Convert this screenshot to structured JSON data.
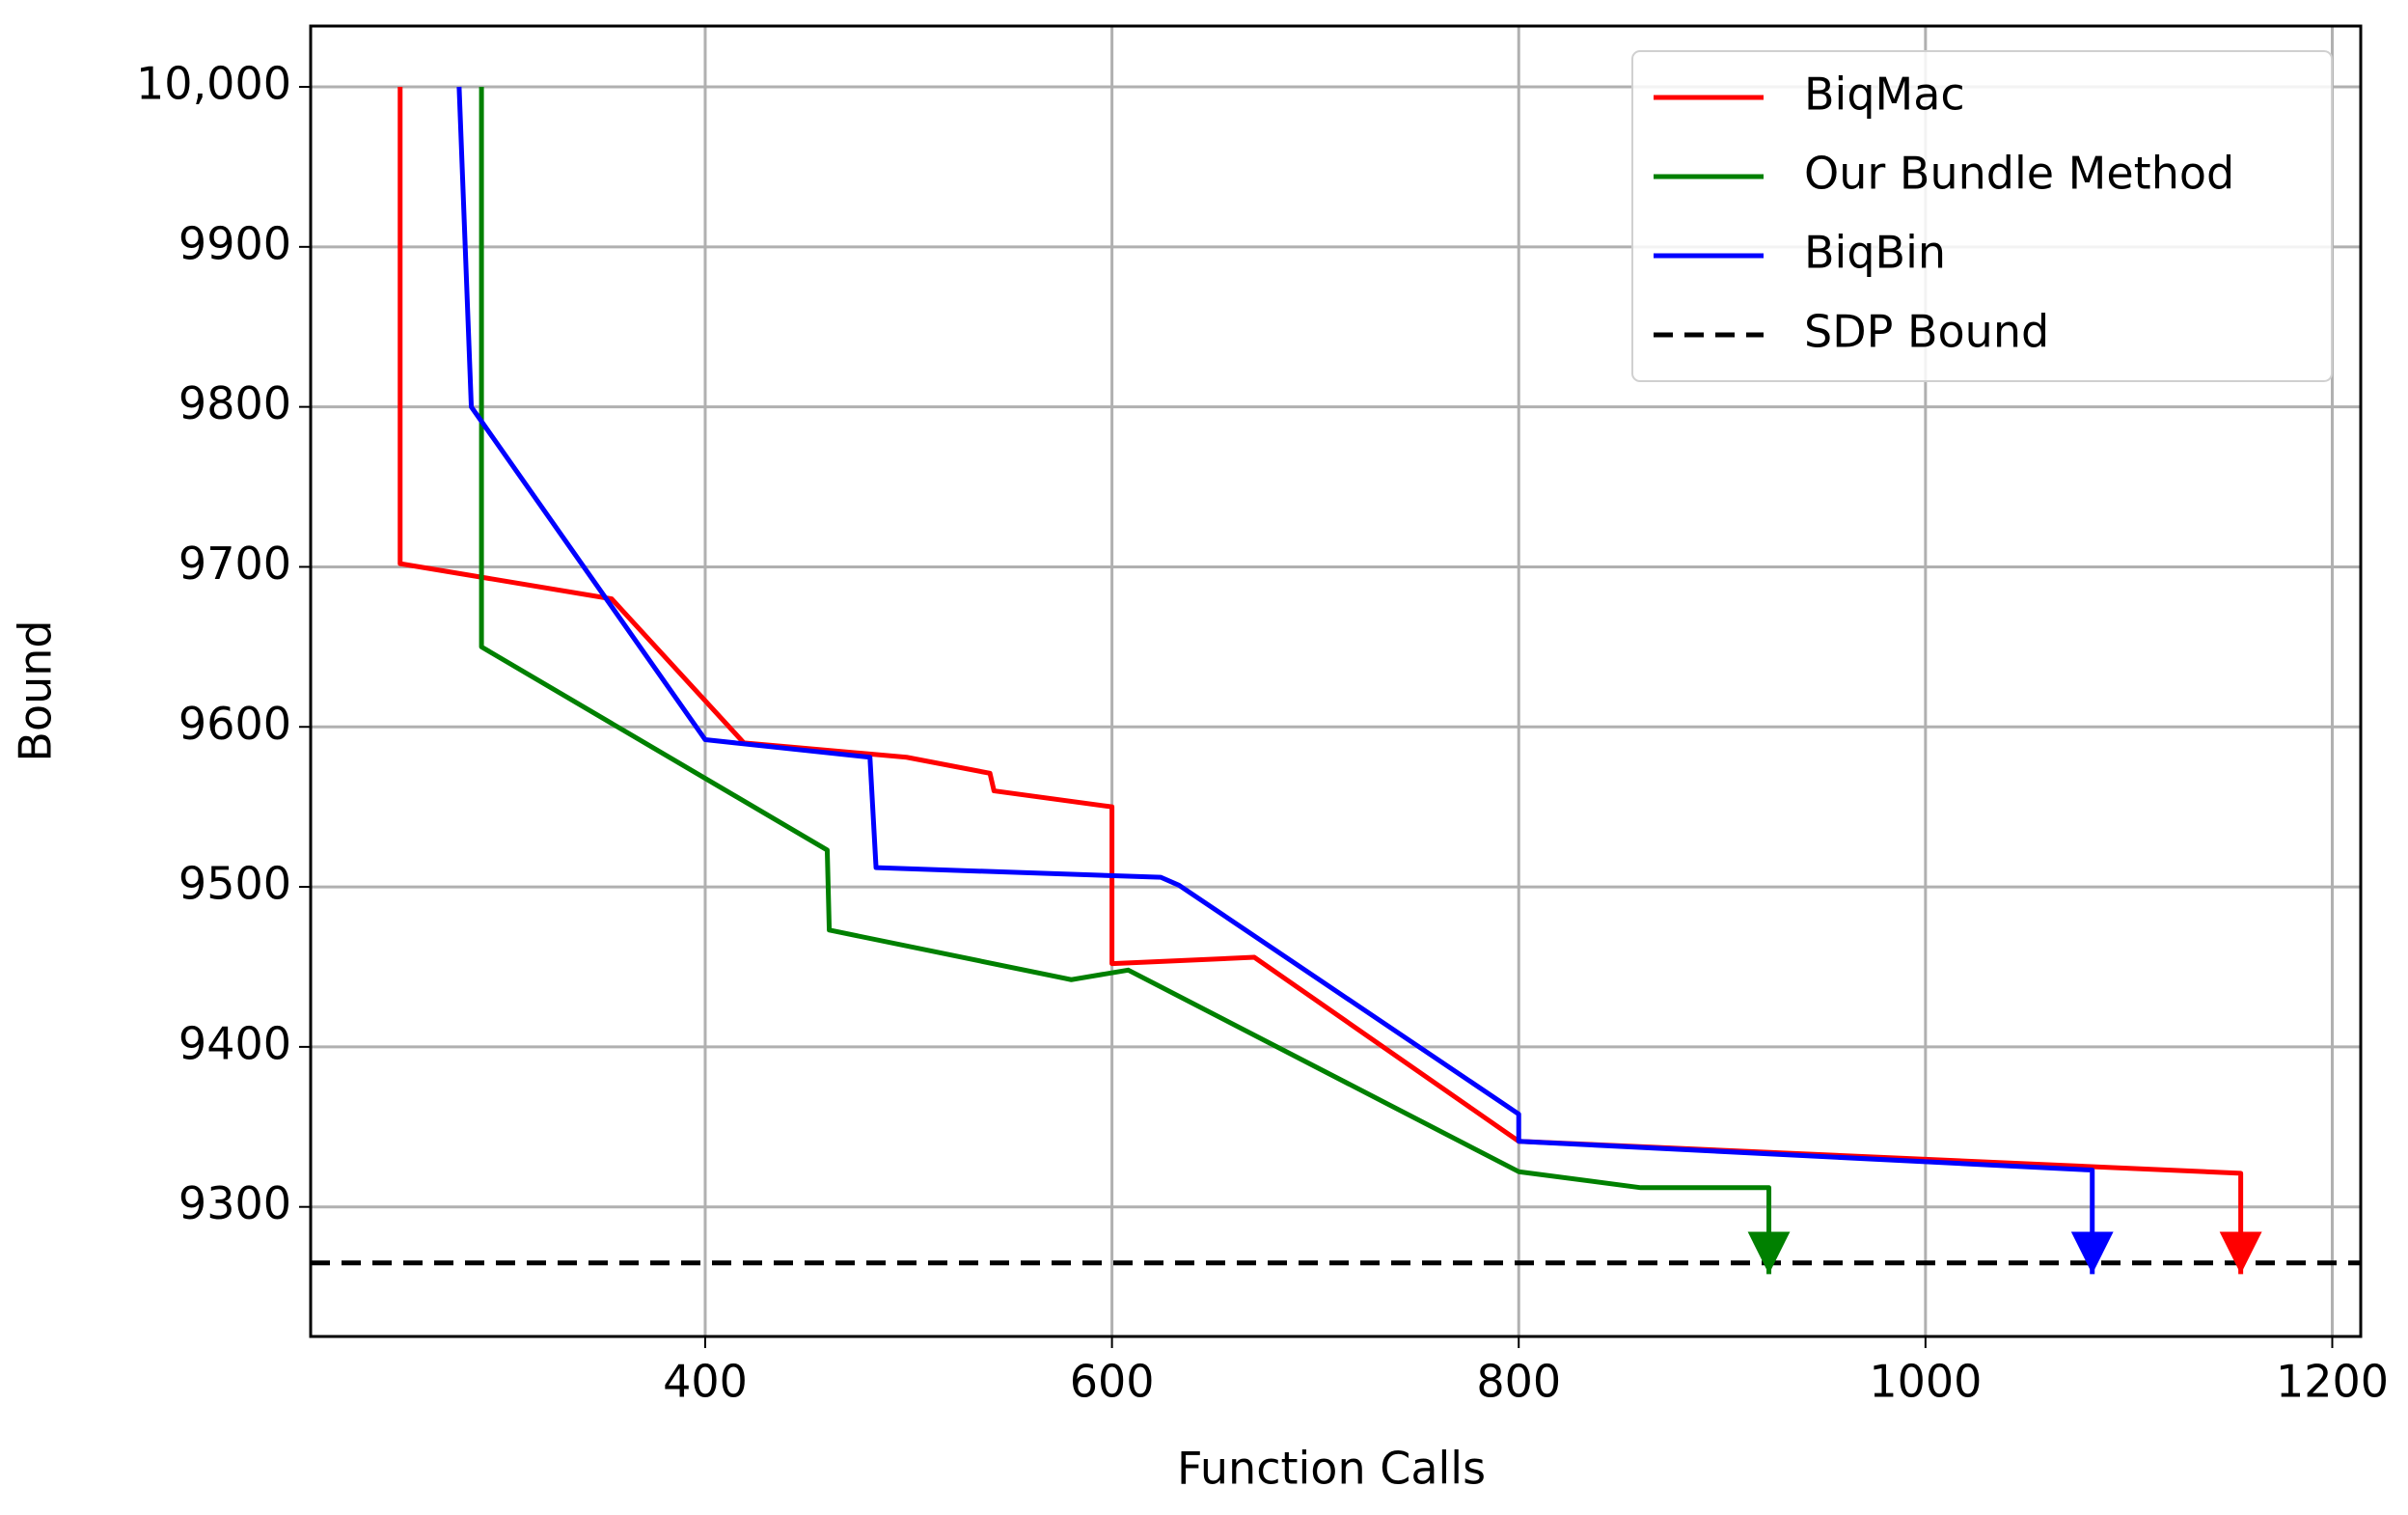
{
  "chart_data": {
    "type": "line",
    "x_label": "Function Calls",
    "y_label": "Bound",
    "xlim": [
      206,
      1214
    ],
    "ylim": [
      9219,
      10038
    ],
    "xticks": [
      400,
      600,
      800,
      1000,
      1200
    ],
    "yticks": [
      9300,
      9400,
      9500,
      9600,
      9700,
      9800,
      9900,
      {
        "value": 10000,
        "label": "10,000"
      }
    ],
    "grid": true,
    "legend": "upper right",
    "end_arrows": true,
    "series": [
      {
        "name": "BiqMac",
        "color": "#ff0000",
        "x": [
          250,
          250,
          354,
          419,
          499,
          540,
          542,
          600,
          600,
          670,
          800,
          1155,
          1155
        ],
        "values": [
          10000,
          9702,
          9680,
          9590,
          9581,
          9571,
          9560,
          9550,
          9452,
          9456,
          9341,
          9321,
          9258
        ]
      },
      {
        "name": "Our Bundle Method",
        "color": "#008000",
        "x": [
          290,
          290,
          460,
          461,
          580,
          608,
          800,
          860,
          923,
          923
        ],
        "values": [
          10000,
          9650,
          9523,
          9473,
          9442,
          9448,
          9322,
          9312,
          9312,
          9258
        ]
      },
      {
        "name": "BiqBin",
        "color": "#0000ff",
        "x": [
          279,
          285,
          400,
          481,
          484,
          624,
          633,
          800,
          800,
          1082,
          1082
        ],
        "values": [
          10000,
          9800,
          9592,
          9581,
          9512,
          9506,
          9501,
          9358,
          9341,
          9323,
          9258
        ]
      }
    ],
    "reference_line": {
      "name": "SDP Bound",
      "value": 9265,
      "color": "#000000",
      "dashed": true
    }
  }
}
